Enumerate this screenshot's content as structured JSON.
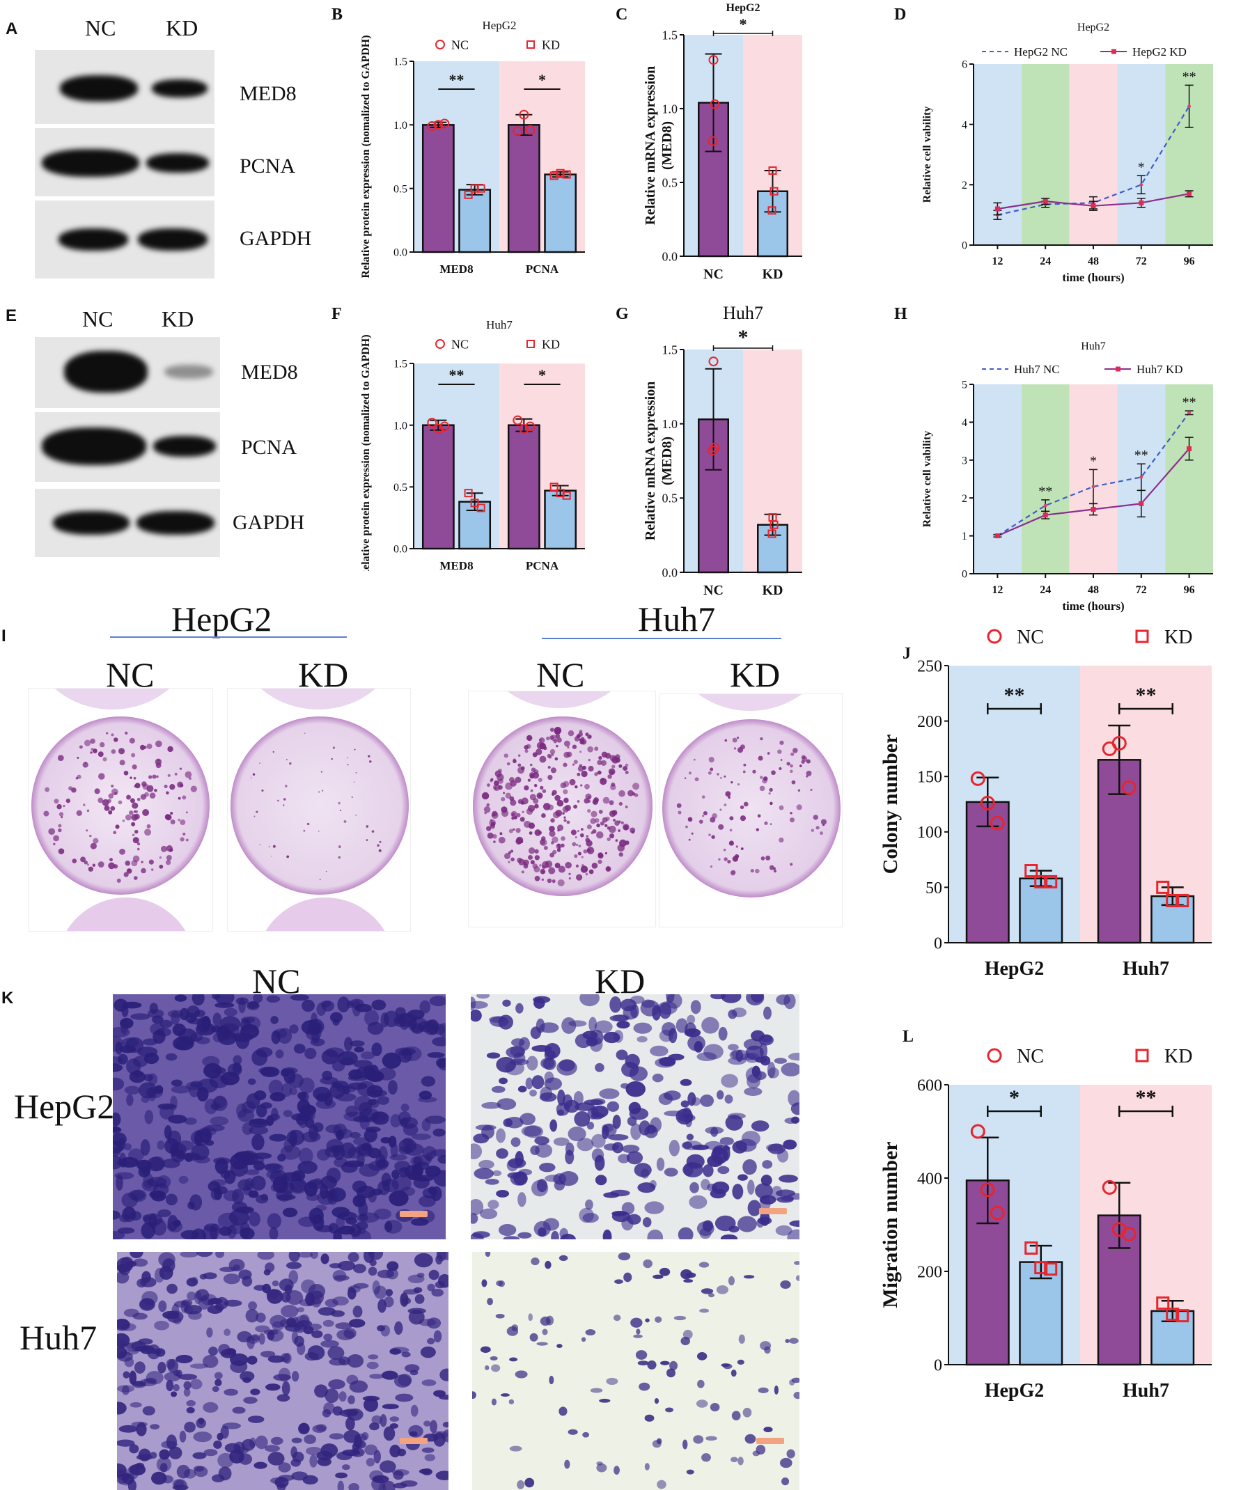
{
  "panels": {
    "A": {
      "letter": "A",
      "headers": [
        "NC",
        "KD"
      ],
      "rows": [
        "MED8",
        "PCNA",
        "GAPDH"
      ]
    },
    "E": {
      "letter": "E",
      "headers": [
        "NC",
        "KD"
      ],
      "rows": [
        "MED8",
        "PCNA",
        "GAPDH"
      ]
    },
    "I": {
      "letter": "I",
      "cell_lines": [
        "HepG2",
        "Huh7"
      ],
      "conditions": [
        "NC",
        "KD"
      ]
    },
    "K": {
      "letter": "K",
      "conditions": [
        "NC",
        "KD"
      ],
      "rows": [
        "HepG2",
        "Huh7"
      ]
    }
  },
  "colors": {
    "nc_bar": "#8f4b98",
    "kd_bar": "#9bc6ea",
    "bg_blue": "#cfe3f5",
    "bg_pink": "#fbdde1",
    "bg_green": "#bfe2b7",
    "marker": "#e8242d",
    "nc_line": "#3f5ec6",
    "kd_line": "#8b2f8f",
    "scale_bar": "#f3a37f"
  },
  "chart_data": [
    {
      "id": "B",
      "letter": "B",
      "type": "bar",
      "title": "HepG2",
      "ylabel": "Relative protein expression (nomalized to GAPDH)",
      "categories": [
        "MED8",
        "PCNA"
      ],
      "ylim": [
        0,
        1.5
      ],
      "yticks": [
        "0.0",
        "0.5",
        "1.0",
        "1.5"
      ],
      "legend": [
        "NC",
        "KD"
      ],
      "legend_position": "top",
      "series": [
        {
          "name": "NC",
          "values": [
            1.0,
            1.0
          ],
          "err": [
            0.02,
            0.08
          ],
          "points": [
            [
              0.99,
              1.0,
              1.01
            ],
            [
              0.95,
              1.08,
              0.96
            ]
          ]
        },
        {
          "name": "KD",
          "values": [
            0.49,
            0.61
          ],
          "err": [
            0.04,
            0.02
          ],
          "points": [
            [
              0.45,
              0.5,
              0.5
            ],
            [
              0.6,
              0.62,
              0.61
            ]
          ]
        }
      ],
      "significance": [
        "**",
        "*"
      ],
      "background": [
        "blue",
        "pink"
      ]
    },
    {
      "id": "C",
      "letter": "C",
      "type": "bar",
      "title": "HepG2",
      "ylabel": "Relative mRNA expression (MED8)",
      "categories": [
        "NC",
        "KD"
      ],
      "ylim": [
        0,
        1.5
      ],
      "yticks": [
        "0.0",
        "0.5",
        "1.0",
        "1.5"
      ],
      "values": [
        1.04,
        0.44
      ],
      "err": [
        0.33,
        0.14
      ],
      "points": [
        [
          1.33,
          1.03,
          0.78
        ],
        [
          0.58,
          0.44,
          0.31
        ]
      ],
      "significance": [
        "*"
      ],
      "background": [
        "blue",
        "pink"
      ]
    },
    {
      "id": "D",
      "letter": "D",
      "type": "line",
      "title": "HepG2",
      "ylabel": "Relative cell vability",
      "xlabel": "time (hours)",
      "categories": [
        "12",
        "24",
        "48",
        "72",
        "96"
      ],
      "ylim": [
        0,
        6
      ],
      "yticks": [
        "0",
        "2",
        "4",
        "6"
      ],
      "legend_position": "top",
      "series": [
        {
          "name": "HepG2 NC",
          "values": [
            1.0,
            1.35,
            1.4,
            2.0,
            4.6
          ],
          "err": [
            0.15,
            0.1,
            0.2,
            0.3,
            0.7
          ]
        },
        {
          "name": "HepG2 KD",
          "values": [
            1.2,
            1.45,
            1.3,
            1.4,
            1.7
          ],
          "err": [
            0.2,
            0.1,
            0.15,
            0.15,
            0.1
          ]
        }
      ],
      "significance": [
        "",
        "",
        "",
        "*",
        "**"
      ],
      "background": [
        "blue",
        "green",
        "pink",
        "blue",
        "green"
      ]
    },
    {
      "id": "F",
      "letter": "F",
      "type": "bar",
      "title": "Huh7",
      "ylabel": "Relative protein expression (nomalized to GAPDH)",
      "categories": [
        "MED8",
        "PCNA"
      ],
      "ylim": [
        0,
        1.5
      ],
      "yticks": [
        "0.0",
        "0.5",
        "1.0",
        "1.5"
      ],
      "legend": [
        "NC",
        "KD"
      ],
      "legend_position": "top",
      "series": [
        {
          "name": "NC",
          "values": [
            1.0,
            1.0
          ],
          "err": [
            0.04,
            0.05
          ],
          "points": [
            [
              1.02,
              0.97,
              0.99
            ],
            [
              1.04,
              0.97,
              0.99
            ]
          ]
        },
        {
          "name": "KD",
          "values": [
            0.38,
            0.47
          ],
          "err": [
            0.07,
            0.04
          ],
          "points": [
            [
              0.45,
              0.37,
              0.33
            ],
            [
              0.5,
              0.45,
              0.43
            ]
          ]
        }
      ],
      "significance": [
        "**",
        "*"
      ],
      "background": [
        "blue",
        "pink"
      ]
    },
    {
      "id": "G",
      "letter": "G",
      "type": "bar",
      "title": "Huh7",
      "ylabel": "Relative mRNA expression (MED8)",
      "categories": [
        "NC",
        "KD"
      ],
      "ylim": [
        0,
        1.5
      ],
      "yticks": [
        "0.0",
        "0.5",
        "1.0",
        "1.5"
      ],
      "values": [
        1.03,
        0.32
      ],
      "err": [
        0.34,
        0.07
      ],
      "points": [
        [
          1.42,
          0.84,
          0.82
        ],
        [
          0.37,
          0.32,
          0.26
        ]
      ],
      "significance": [
        "*"
      ],
      "background": [
        "blue",
        "pink"
      ]
    },
    {
      "id": "H",
      "letter": "H",
      "type": "line",
      "title": "Huh7",
      "ylabel": "Relative cell vability",
      "xlabel": "time (hours)",
      "categories": [
        "12",
        "24",
        "48",
        "72",
        "96"
      ],
      "ylim": [
        0,
        5
      ],
      "yticks": [
        "0",
        "1",
        "2",
        "3",
        "4",
        "5"
      ],
      "legend_position": "top",
      "series": [
        {
          "name": "Huh7 NC",
          "values": [
            1.0,
            1.8,
            2.3,
            2.55,
            4.25
          ],
          "err": [
            0.03,
            0.15,
            0.45,
            0.35,
            0.05
          ]
        },
        {
          "name": "Huh7 KD",
          "values": [
            1.0,
            1.55,
            1.7,
            1.85,
            3.3
          ],
          "err": [
            0.03,
            0.1,
            0.15,
            0.35,
            0.3
          ]
        }
      ],
      "significance": [
        "",
        "**",
        "*",
        "**",
        "**"
      ],
      "background": [
        "blue",
        "green",
        "pink",
        "blue",
        "green"
      ]
    },
    {
      "id": "J",
      "letter": "J",
      "type": "bar",
      "ylabel": "Colony number",
      "categories": [
        "HepG2",
        "Huh7"
      ],
      "ylim": [
        0,
        250
      ],
      "yticks": [
        "0",
        "50",
        "100",
        "150",
        "200",
        "250"
      ],
      "legend": [
        "NC",
        "KD"
      ],
      "legend_position": "top",
      "series": [
        {
          "name": "NC",
          "values": [
            127,
            165
          ],
          "err": [
            22,
            31
          ],
          "points": [
            [
              148,
              126,
              108
            ],
            [
              175,
              180,
              140
            ]
          ]
        },
        {
          "name": "KD",
          "values": [
            58,
            42
          ],
          "err": [
            7,
            8
          ],
          "points": [
            [
              65,
              55,
              55
            ],
            [
              50,
              38,
              38
            ]
          ]
        }
      ],
      "significance": [
        "**",
        "**"
      ],
      "background": [
        "blue",
        "pink"
      ]
    },
    {
      "id": "L",
      "letter": "L",
      "type": "bar",
      "ylabel": "Migration number",
      "categories": [
        "HepG2",
        "Huh7"
      ],
      "ylim": [
        0,
        600
      ],
      "yticks": [
        "0",
        "200",
        "400",
        "600"
      ],
      "legend": [
        "NC",
        "KD"
      ],
      "legend_position": "top",
      "series": [
        {
          "name": "NC",
          "values": [
            395,
            320
          ],
          "err": [
            92,
            70
          ],
          "points": [
            [
              500,
              375,
              325
            ],
            [
              380,
              290,
              280
            ]
          ]
        },
        {
          "name": "KD",
          "values": [
            220,
            115
          ],
          "err": [
            35,
            22
          ],
          "points": [
            [
              250,
              208,
              205
            ],
            [
              132,
              108,
              105
            ]
          ]
        }
      ],
      "significance": [
        "*",
        "**"
      ],
      "background": [
        "blue",
        "pink"
      ]
    }
  ]
}
